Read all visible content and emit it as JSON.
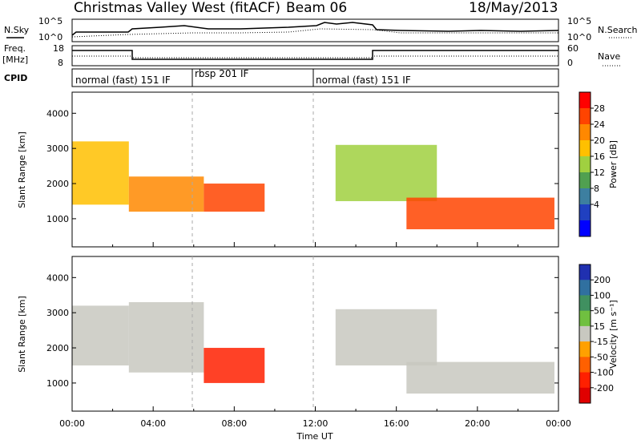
{
  "header": {
    "station": "Christmas Valley West (fitACF)",
    "beam": "Beam 06",
    "date": "18/May/2013"
  },
  "strips": {
    "nsky_label": "N.Sky",
    "nsearch_label": "N.Search",
    "noise_ticks": [
      "10^5",
      "10^0"
    ],
    "freq_label": "Freq.",
    "freq_unit": "[MHz]",
    "freq_ticks": [
      "18",
      "8"
    ],
    "nave_label": "Nave",
    "nave_ticks": [
      "60",
      "0"
    ],
    "cpid_label": "CPID",
    "cpid_segments": [
      "normal (fast) 151 IF",
      "rbsp 201 IF",
      "normal (fast) 151 IF"
    ]
  },
  "power_colorbar": {
    "label": "Power [dB]",
    "ticks": [
      "28",
      "24",
      "20",
      "16",
      "12",
      "8",
      "4"
    ],
    "colors": [
      "#ff0000",
      "#ff4400",
      "#ff8800",
      "#ffc000",
      "#a0d040",
      "#50a050",
      "#3d7fa0",
      "#2040c0",
      "#0000ff"
    ]
  },
  "velocity_colorbar": {
    "label": "Velocity [m s⁻¹]",
    "ticks": [
      "200",
      "100",
      "50",
      "15",
      "-15",
      "-50",
      "-100",
      "-200"
    ],
    "colors": [
      "#2030b0",
      "#3070a0",
      "#409060",
      "#70c040",
      "#c8c8c0",
      "#ffa000",
      "#ff6000",
      "#ff2000",
      "#e00000"
    ]
  },
  "chart_data": [
    {
      "type": "heatmap",
      "name": "power",
      "ylabel": "Slant Range [km]",
      "yticks": [
        "1000",
        "2000",
        "3000",
        "4000"
      ],
      "ylim": [
        200,
        4600
      ],
      "xticks": [
        "00:00",
        "04:00",
        "08:00",
        "12:00",
        "16:00",
        "20:00",
        "00:00"
      ],
      "xlim": [
        0,
        24
      ],
      "colorbar": "Power [dB]",
      "regions": [
        {
          "t": [
            0.0,
            2.8
          ],
          "r": [
            1400,
            3200
          ],
          "value": 20
        },
        {
          "t": [
            2.8,
            6.5
          ],
          "r": [
            1200,
            2200
          ],
          "value": 24
        },
        {
          "t": [
            6.5,
            9.5
          ],
          "r": [
            1200,
            2000
          ],
          "value": 28
        },
        {
          "t": [
            13.0,
            18.0
          ],
          "r": [
            1500,
            3100
          ],
          "value": 14
        },
        {
          "t": [
            16.5,
            23.8
          ],
          "r": [
            700,
            1600
          ],
          "value": 26
        }
      ]
    },
    {
      "type": "heatmap",
      "name": "velocity",
      "ylabel": "Slant Range [km]",
      "yticks": [
        "1000",
        "2000",
        "3000",
        "4000"
      ],
      "ylim": [
        200,
        4600
      ],
      "xticks": [
        "00:00",
        "04:00",
        "08:00",
        "12:00",
        "16:00",
        "20:00",
        "00:00"
      ],
      "xlim": [
        0,
        24
      ],
      "xlabel": "Time UT",
      "colorbar": "Velocity [m s⁻¹]",
      "regions": [
        {
          "t": [
            0.0,
            2.8
          ],
          "r": [
            1500,
            3200
          ],
          "value": 0
        },
        {
          "t": [
            2.8,
            6.5
          ],
          "r": [
            1300,
            3300
          ],
          "value": 30
        },
        {
          "t": [
            6.5,
            9.5
          ],
          "r": [
            1000,
            2000
          ],
          "value": -200
        },
        {
          "t": [
            13.0,
            18.0
          ],
          "r": [
            1500,
            3100
          ],
          "value": 0
        },
        {
          "t": [
            16.5,
            23.8
          ],
          "r": [
            700,
            1600
          ],
          "value": 0
        }
      ]
    }
  ]
}
